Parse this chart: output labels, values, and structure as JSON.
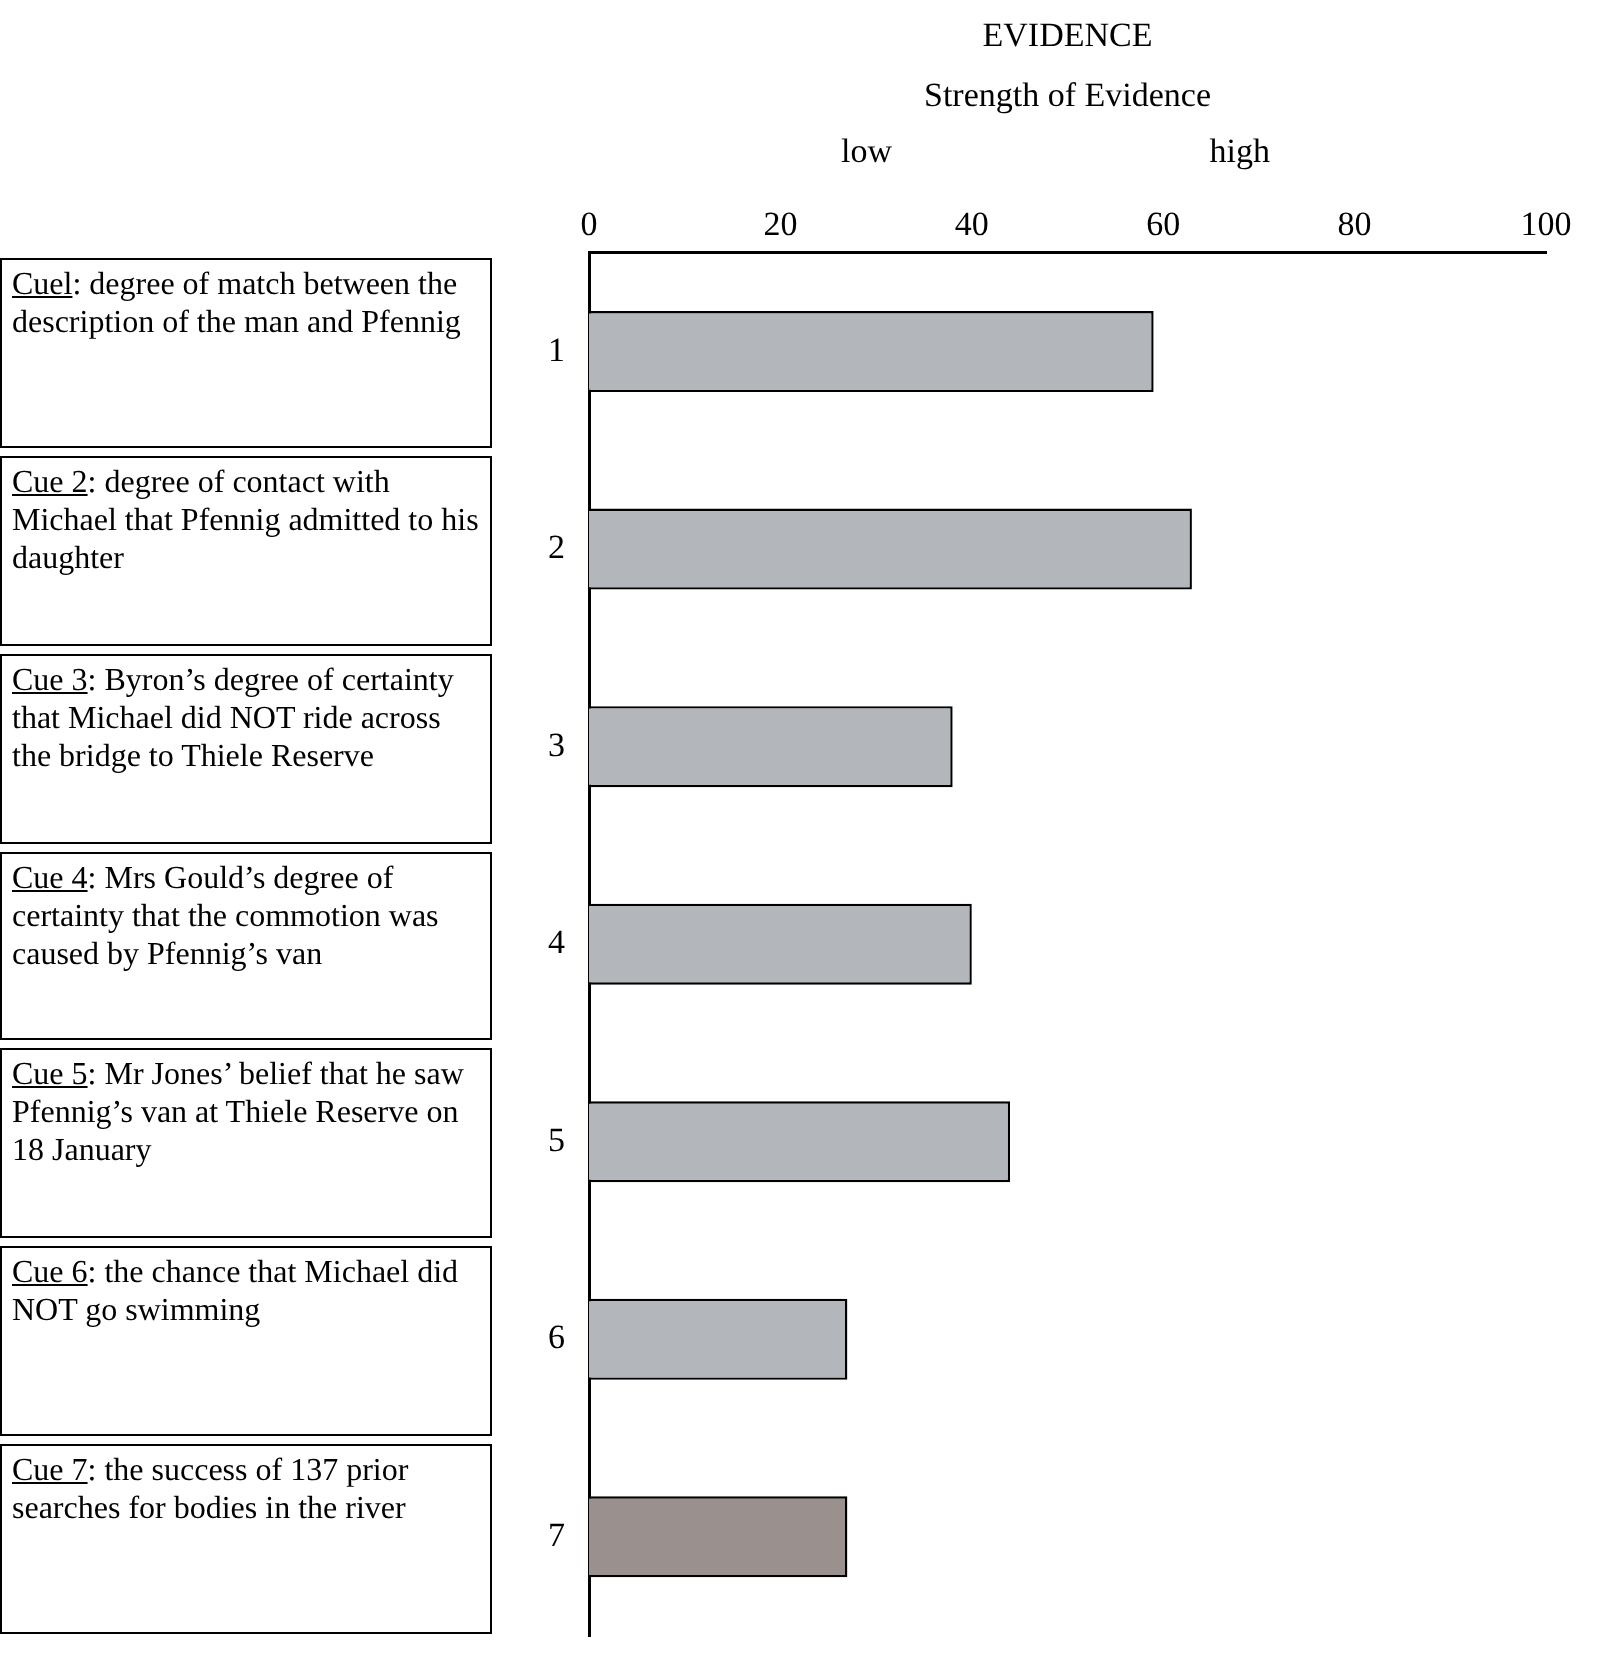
{
  "chart_data": {
    "type": "bar",
    "orientation": "horizontal",
    "title": "EVIDENCE",
    "xlabel": "Strength of Evidence",
    "categories": [
      "1",
      "2",
      "3",
      "4",
      "5",
      "6",
      "7"
    ],
    "values": [
      59,
      63,
      38,
      40,
      44,
      27,
      27
    ],
    "colors": [
      "#b3b6ba",
      "#b3b6ba",
      "#b3b6ba",
      "#b3b6ba",
      "#b3b6ba",
      "#b3b6ba",
      "#9a908e"
    ],
    "xlim": [
      0,
      100
    ],
    "xticks": [
      0,
      20,
      40,
      60,
      80,
      100
    ],
    "grid": false,
    "legend": false,
    "annotations": [
      "low",
      "high",
      "Cuel: degree of match between the description of the man and Pfennig",
      "Cue 2: degree of contact with Michael that Pfennig admitted to his daughter",
      "Cue 3: Byron’s degree of certainty that Michael did NOT ride across the bridge to Thiele Reserve",
      "Cue 4: Mrs Gould’s degree of certainty that the commotion was caused by Pfennig’s van",
      "Cue 5: Mr Jones’ belief that he saw Pfennig’s van at Thiele Reserve on 18 January",
      "Cue 6: the chance that Michael did NOT go swimming",
      "Cue 7: the success of 137 prior searches for bodies in the river"
    ]
  }
}
